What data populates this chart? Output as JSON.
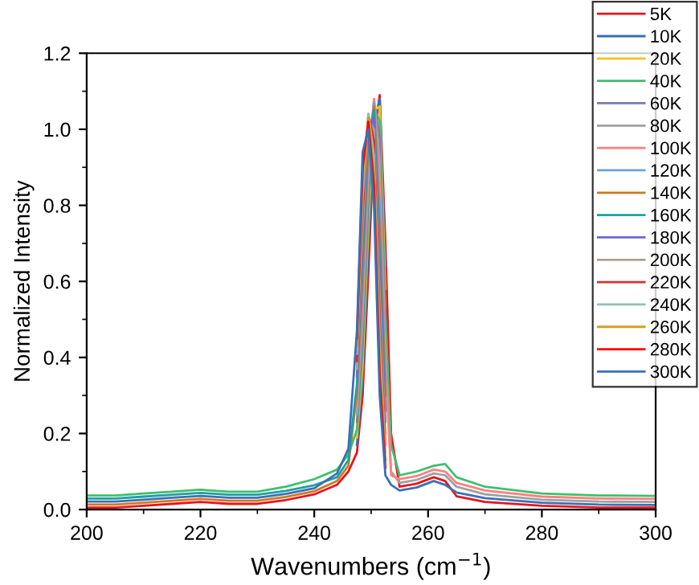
{
  "chart_data": {
    "type": "line",
    "xlabel": "Wavenumbers (cm$^{−1}$)",
    "ylabel": "Normalized Intensity",
    "xlim": [
      200,
      300
    ],
    "xticks": [
      200,
      220,
      240,
      260,
      280,
      300
    ],
    "ylim": [
      0,
      1.2
    ],
    "yticks": [
      {
        "value": 0,
        "label": "0.0"
      },
      0.2,
      0.4,
      0.6,
      0.8,
      {
        "value": 1,
        "label": "1.0"
      },
      1.2
    ],
    "grid": false,
    "legend": "top right",
    "marker": "none",
    "line_style": "solid",
    "x": [
      200,
      205,
      210,
      215,
      220,
      225,
      230,
      235,
      240,
      244,
      246,
      247.5,
      248.5,
      249.5,
      250.5,
      251.5,
      252.5,
      253.5,
      255,
      258,
      261,
      263,
      265,
      270,
      280,
      290,
      300
    ],
    "series": [
      {
        "name": "5K",
        "color": "#e8141c",
        "values": [
          0.005,
          0.005,
          0.01,
          0.015,
          0.02,
          0.015,
          0.015,
          0.025,
          0.04,
          0.065,
          0.1,
          0.15,
          0.3,
          0.62,
          0.98,
          1.09,
          0.7,
          0.2,
          0.06,
          0.068,
          0.085,
          0.075,
          0.035,
          0.02,
          0.01,
          0.005,
          0.005
        ]
      },
      {
        "name": "10K",
        "color": "#3a6eaf",
        "values": [
          null,
          null,
          null,
          null,
          null,
          null,
          null,
          null,
          null,
          null,
          null,
          0.17,
          0.34,
          0.68,
          1.01,
          1.08,
          0.64,
          null,
          null,
          null,
          null,
          null,
          null,
          null,
          null,
          null,
          null
        ]
      },
      {
        "name": "20K",
        "color": "#f5c11a",
        "values": [
          null,
          null,
          null,
          null,
          null,
          null,
          null,
          null,
          null,
          null,
          null,
          0.19,
          0.38,
          0.74,
          1.05,
          1.06,
          0.58,
          null,
          null,
          null,
          null,
          null,
          null,
          null,
          null,
          null,
          null
        ]
      },
      {
        "name": "40K",
        "color": "#3fbf6f",
        "values": [
          0.037,
          0.037,
          0.042,
          0.047,
          0.052,
          0.047,
          0.047,
          0.06,
          0.08,
          0.105,
          0.145,
          0.21,
          0.42,
          0.78,
          1.06,
          1.02,
          0.52,
          0.17,
          0.09,
          0.1,
          0.115,
          0.12,
          0.085,
          0.06,
          0.042,
          0.037,
          0.036
        ]
      },
      {
        "name": "60K",
        "color": "#7a7ab4",
        "values": [
          null,
          null,
          null,
          null,
          null,
          null,
          null,
          null,
          null,
          null,
          null,
          0.23,
          0.46,
          0.82,
          1.07,
          0.98,
          0.47,
          null,
          null,
          null,
          null,
          null,
          null,
          null,
          null,
          null,
          null
        ]
      },
      {
        "name": "80K",
        "color": "#a0a0a0",
        "values": [
          null,
          null,
          null,
          null,
          null,
          null,
          null,
          null,
          null,
          null,
          null,
          0.25,
          0.5,
          0.86,
          1.08,
          0.92,
          0.42,
          0.1,
          0.07,
          0.078,
          0.095,
          0.09,
          0.06,
          0.04,
          0.026,
          0.021,
          0.02
        ]
      },
      {
        "name": "100K",
        "color": "#ff8080",
        "values": [
          null,
          null,
          null,
          null,
          null,
          null,
          null,
          null,
          null,
          null,
          null,
          0.27,
          0.54,
          0.9,
          1.08,
          0.86,
          0.38,
          0.09,
          0.08,
          0.088,
          0.105,
          0.1,
          0.07,
          0.05,
          0.034,
          0.029,
          0.028
        ]
      },
      {
        "name": "120K",
        "color": "#6fa0d8",
        "values": [
          null,
          null,
          null,
          null,
          null,
          null,
          null,
          null,
          null,
          null,
          null,
          0.29,
          0.58,
          0.93,
          1.07,
          0.8,
          0.34,
          null,
          null,
          null,
          null,
          null,
          null,
          null,
          null,
          null,
          null
        ]
      },
      {
        "name": "140K",
        "color": "#d07820",
        "values": [
          0.013,
          0.013,
          0.018,
          0.023,
          0.028,
          0.023,
          0.023,
          0.033,
          0.048,
          0.075,
          0.115,
          0.31,
          0.62,
          0.96,
          1.06,
          0.74,
          0.3,
          null,
          null,
          null,
          null,
          null,
          null,
          null,
          null,
          null,
          null
        ]
      },
      {
        "name": "160K",
        "color": "#1fa0a0",
        "values": [
          0.029,
          0.029,
          0.034,
          0.039,
          0.044,
          0.039,
          0.039,
          0.049,
          0.064,
          0.085,
          0.13,
          0.33,
          0.66,
          0.98,
          1.05,
          0.68,
          0.26,
          null,
          null,
          null,
          null,
          null,
          null,
          null,
          null,
          null,
          null
        ]
      },
      {
        "name": "180K",
        "color": "#6a6ad0",
        "values": [
          null,
          null,
          null,
          null,
          null,
          null,
          null,
          null,
          null,
          null,
          null,
          0.35,
          0.7,
          1.0,
          1.03,
          0.62,
          0.23,
          null,
          null,
          null,
          null,
          null,
          null,
          null,
          null,
          null,
          null
        ]
      },
      {
        "name": "200K",
        "color": "#b0a090",
        "values": [
          null,
          null,
          null,
          null,
          null,
          null,
          null,
          null,
          null,
          null,
          null,
          0.37,
          0.74,
          1.02,
          1.0,
          0.56,
          0.2,
          null,
          null,
          null,
          null,
          null,
          null,
          null,
          null,
          null,
          null
        ]
      },
      {
        "name": "220K",
        "color": "#d83030",
        "values": [
          null,
          null,
          null,
          null,
          null,
          null,
          null,
          null,
          null,
          null,
          null,
          0.39,
          0.78,
          1.04,
          0.97,
          0.5,
          0.17,
          null,
          null,
          null,
          null,
          null,
          null,
          null,
          null,
          null,
          null
        ]
      },
      {
        "name": "240K",
        "color": "#90c0b8",
        "values": [
          null,
          null,
          null,
          null,
          null,
          null,
          null,
          null,
          null,
          null,
          null,
          0.41,
          0.82,
          1.04,
          0.93,
          0.45,
          0.15,
          null,
          null,
          null,
          null,
          null,
          null,
          null,
          null,
          null,
          null
        ]
      },
      {
        "name": "260K",
        "color": "#d0a020",
        "values": [
          null,
          null,
          null,
          null,
          null,
          null,
          null,
          null,
          null,
          null,
          null,
          0.43,
          0.86,
          1.03,
          0.89,
          0.4,
          0.13,
          null,
          null,
          null,
          null,
          null,
          null,
          null,
          null,
          null,
          null
        ]
      },
      {
        "name": "280K",
        "color": "#ff0000",
        "values": [
          null,
          null,
          null,
          null,
          null,
          null,
          null,
          null,
          null,
          null,
          null,
          0.45,
          0.9,
          1.02,
          0.85,
          0.35,
          0.11,
          null,
          null,
          null,
          null,
          null,
          null,
          null,
          null,
          null,
          null
        ]
      },
      {
        "name": "300K",
        "color": "#3a70b8",
        "values": [
          0.021,
          0.021,
          0.026,
          0.031,
          0.036,
          0.031,
          0.031,
          0.041,
          0.056,
          0.095,
          0.16,
          0.47,
          0.94,
          1.0,
          0.8,
          0.3,
          0.09,
          0.065,
          0.05,
          0.058,
          0.075,
          0.065,
          0.045,
          0.03,
          0.018,
          0.013,
          0.012
        ]
      }
    ]
  }
}
